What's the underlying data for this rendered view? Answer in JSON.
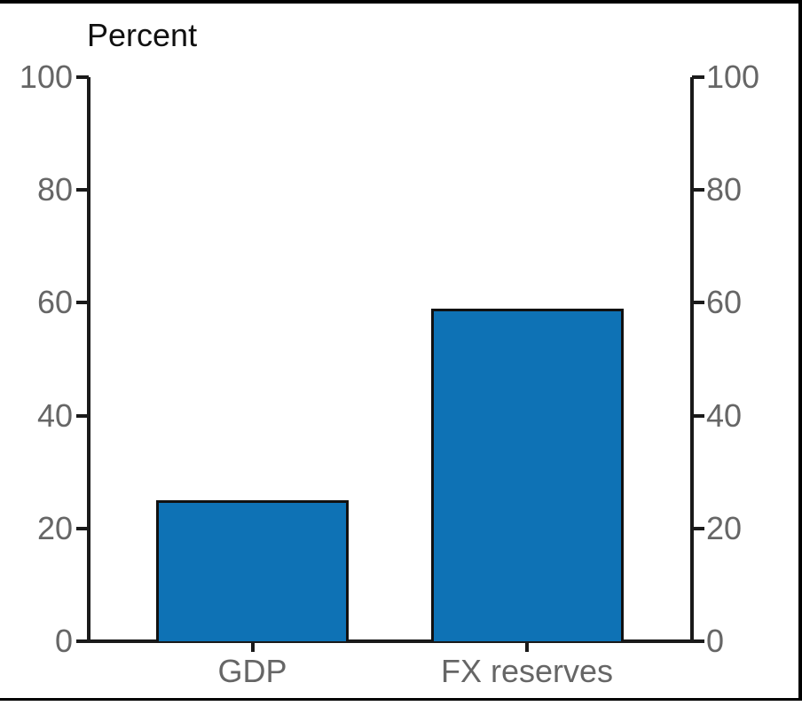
{
  "window": {
    "background": "#ffffff",
    "border_color": "#000000"
  },
  "chart_data": {
    "type": "bar",
    "title": "Percent",
    "categories": [
      "GDP",
      "FX reserves"
    ],
    "values": [
      25,
      59
    ],
    "xlabel": "",
    "ylabel": "Percent",
    "ylim": [
      0,
      100
    ],
    "yticks": [
      0,
      20,
      40,
      60,
      80,
      100
    ],
    "grid": false,
    "legend": "none",
    "axes_style": "mirrored-left-right-ticks-outward",
    "colors": {
      "bar_fill": "#0e72b5",
      "bar_border": "#111111",
      "axis": "#1a1a1a",
      "tick_label": "#666666",
      "title": "#111111"
    }
  }
}
